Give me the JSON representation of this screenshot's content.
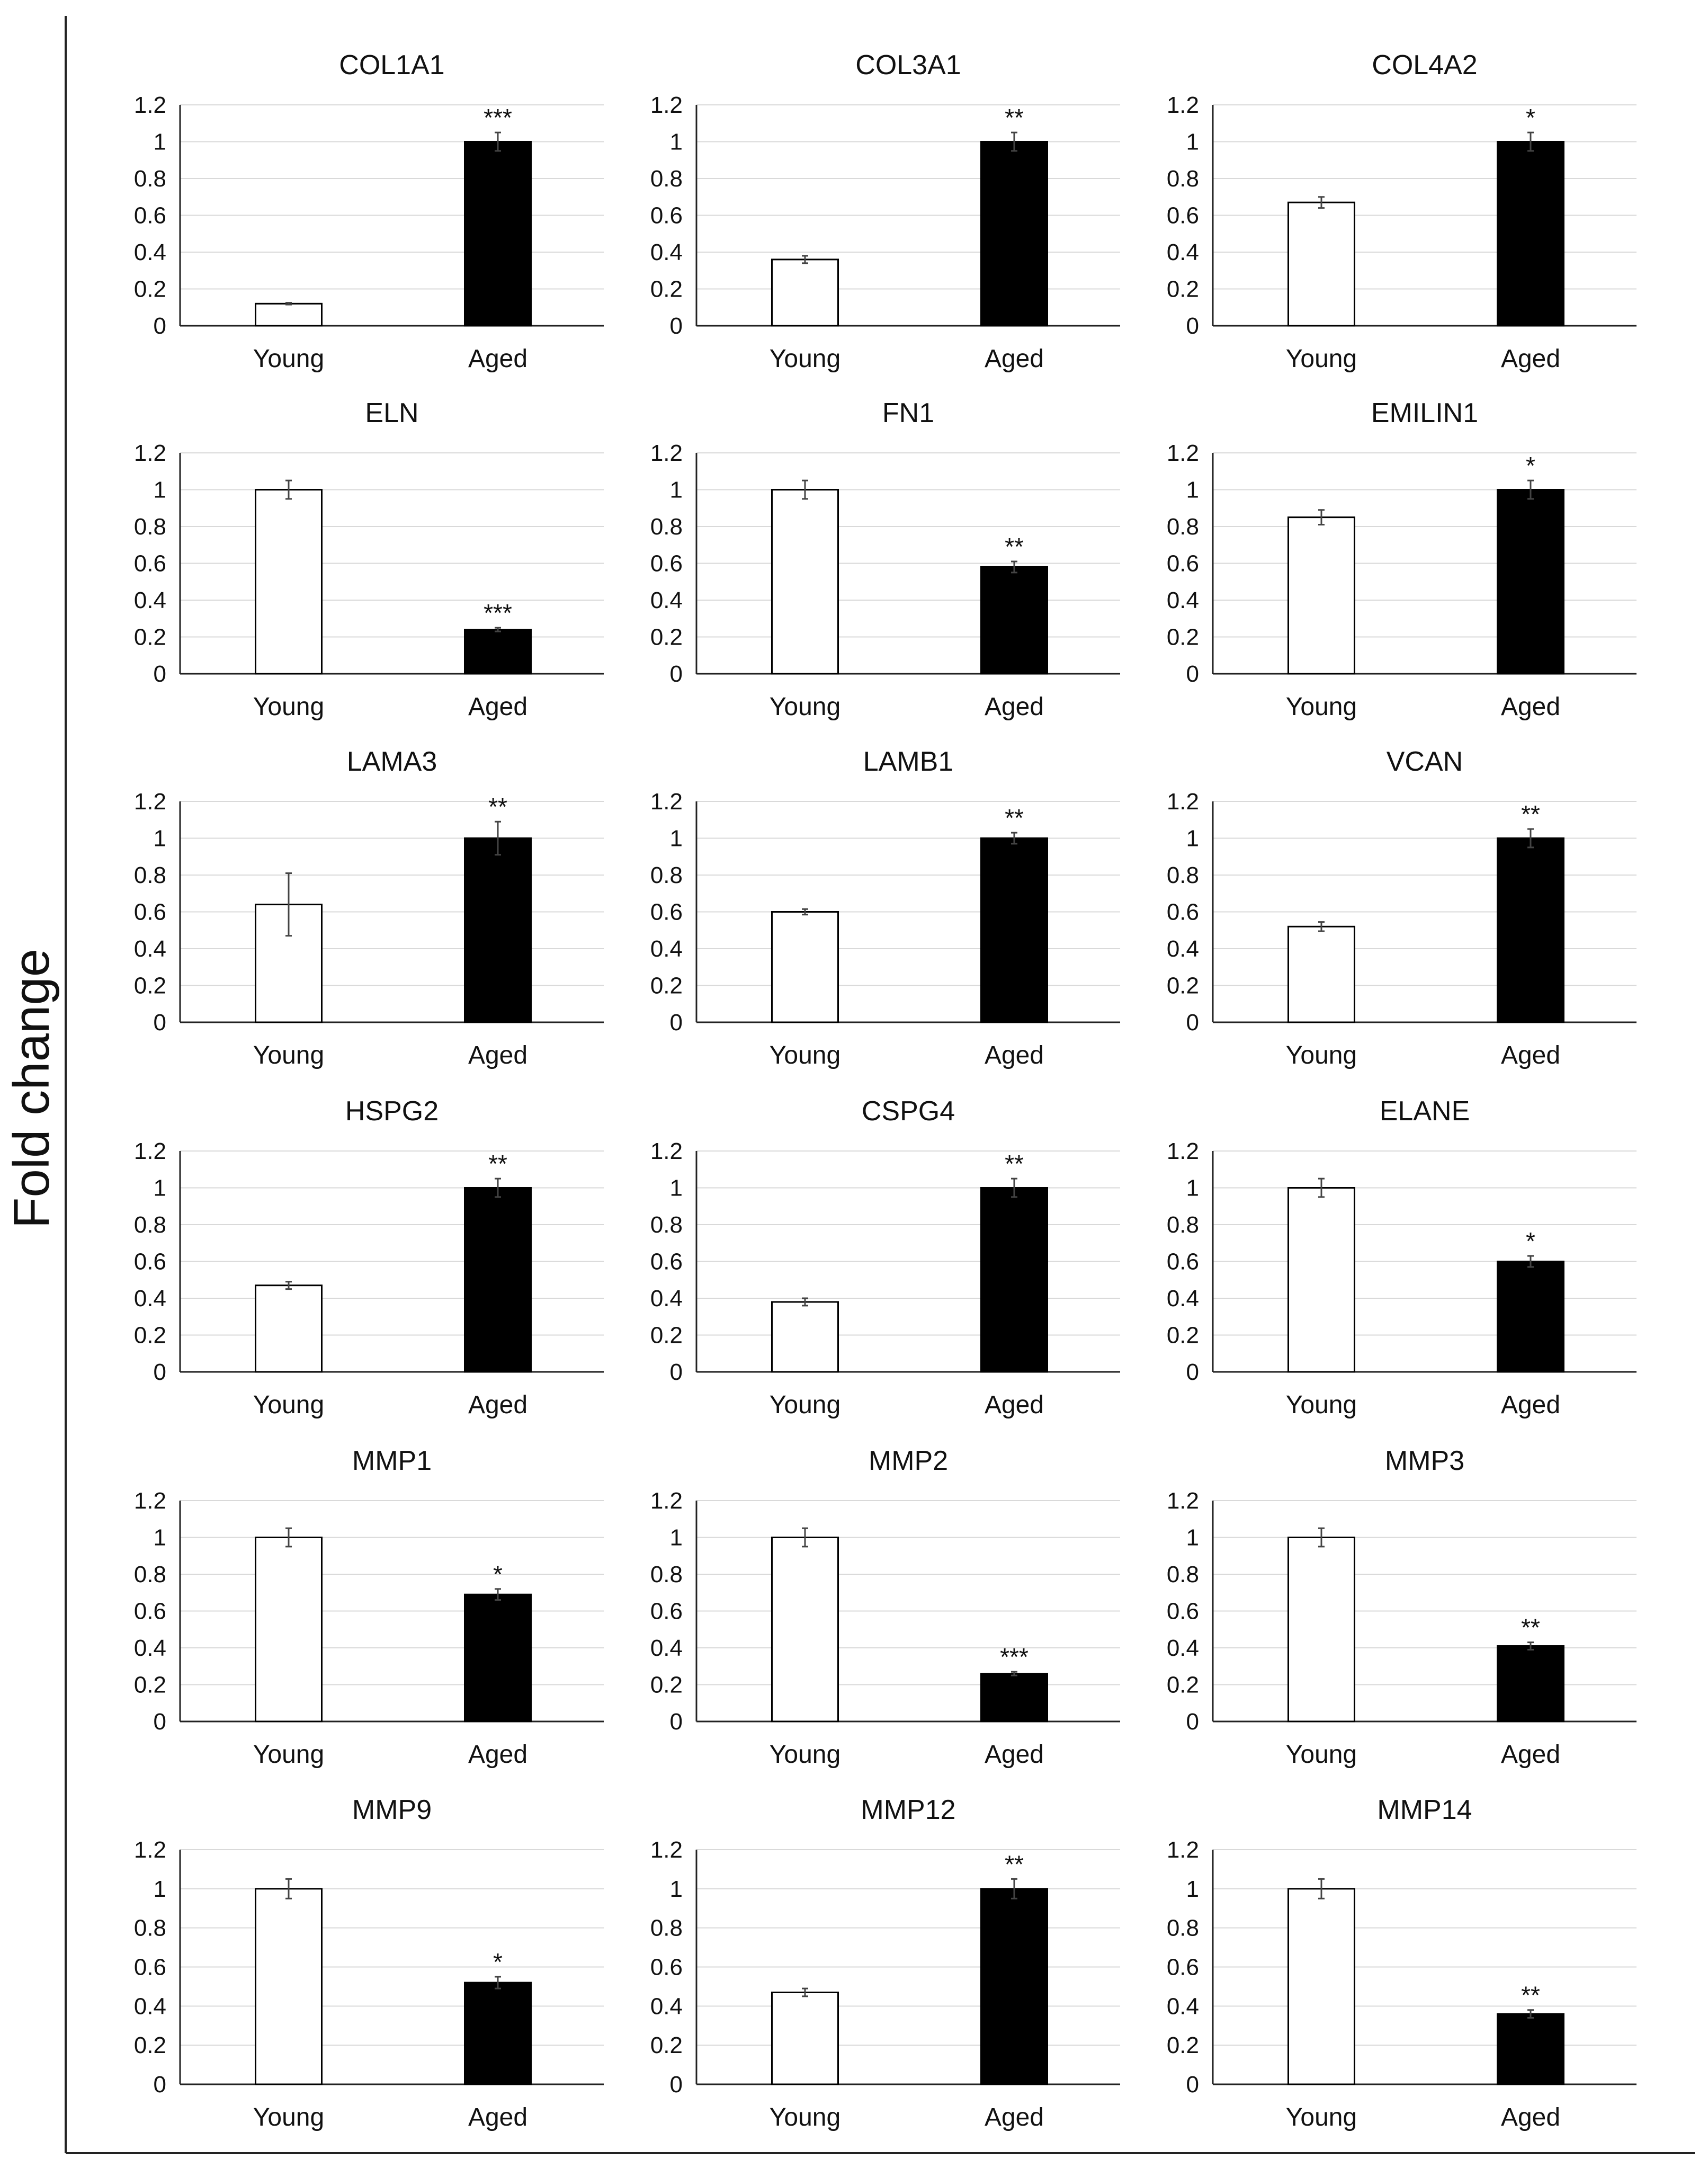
{
  "figure": {
    "y_axis_label": "Fold change"
  },
  "colors": {
    "young_bar": "#ffffff",
    "aged_bar": "#000000",
    "axis": "#222222",
    "grid": "#d9d9d9"
  },
  "chart_data": [
    {
      "type": "bar",
      "title": "COL1A1",
      "categories": [
        "Young",
        "Aged"
      ],
      "values": [
        0.12,
        1.0
      ],
      "errors": [
        0.005,
        0.05
      ],
      "significance": [
        "",
        "***"
      ],
      "yticks": [
        "0",
        "0.2",
        "0.4",
        "0.6",
        "0.8",
        "1",
        "1.2"
      ],
      "ylim": [
        0,
        1.2
      ]
    },
    {
      "type": "bar",
      "title": "COL3A1",
      "categories": [
        "Young",
        "Aged"
      ],
      "values": [
        0.36,
        1.0
      ],
      "errors": [
        0.02,
        0.05
      ],
      "significance": [
        "",
        "**"
      ],
      "yticks": [
        "0",
        "0.2",
        "0.4",
        "0.6",
        "0.8",
        "1",
        "1.2"
      ],
      "ylim": [
        0,
        1.2
      ]
    },
    {
      "type": "bar",
      "title": "COL4A2",
      "categories": [
        "Young",
        "Aged"
      ],
      "values": [
        0.67,
        1.0
      ],
      "errors": [
        0.03,
        0.05
      ],
      "significance": [
        "",
        "*"
      ],
      "yticks": [
        "0",
        "0.2",
        "0.4",
        "0.6",
        "0.8",
        "1",
        "1.2"
      ],
      "ylim": [
        0,
        1.2
      ]
    },
    {
      "type": "bar",
      "title": "ELN",
      "categories": [
        "Young",
        "Aged"
      ],
      "values": [
        1.0,
        0.24
      ],
      "errors": [
        0.05,
        0.01
      ],
      "significance": [
        "",
        "***"
      ],
      "yticks": [
        "0",
        "0.2",
        "0.4",
        "0.6",
        "0.8",
        "1",
        "1.2"
      ],
      "ylim": [
        0,
        1.2
      ]
    },
    {
      "type": "bar",
      "title": "FN1",
      "categories": [
        "Young",
        "Aged"
      ],
      "values": [
        1.0,
        0.58
      ],
      "errors": [
        0.05,
        0.03
      ],
      "significance": [
        "",
        "**"
      ],
      "yticks": [
        "0",
        "0.2",
        "0.4",
        "0.6",
        "0.8",
        "1",
        "1.2"
      ],
      "ylim": [
        0,
        1.2
      ]
    },
    {
      "type": "bar",
      "title": "EMILIN1",
      "categories": [
        "Young",
        "Aged"
      ],
      "values": [
        0.85,
        1.0
      ],
      "errors": [
        0.04,
        0.05
      ],
      "significance": [
        "",
        "*"
      ],
      "yticks": [
        "0",
        "0.2",
        "0.4",
        "0.6",
        "0.8",
        "1",
        "1.2"
      ],
      "ylim": [
        0,
        1.2
      ]
    },
    {
      "type": "bar",
      "title": "LAMA3",
      "categories": [
        "Young",
        "Aged"
      ],
      "values": [
        0.64,
        1.0
      ],
      "errors": [
        0.17,
        0.09
      ],
      "significance": [
        "",
        "**"
      ],
      "yticks": [
        "0",
        "0.2",
        "0.4",
        "0.6",
        "0.8",
        "1",
        "1.2"
      ],
      "ylim": [
        0,
        1.2
      ]
    },
    {
      "type": "bar",
      "title": "LAMB1",
      "categories": [
        "Young",
        "Aged"
      ],
      "values": [
        0.6,
        1.0
      ],
      "errors": [
        0.015,
        0.03
      ],
      "significance": [
        "",
        "**"
      ],
      "yticks": [
        "0",
        "0.2",
        "0.4",
        "0.6",
        "0.8",
        "1",
        "1.2"
      ],
      "ylim": [
        0,
        1.2
      ]
    },
    {
      "type": "bar",
      "title": "VCAN",
      "categories": [
        "Young",
        "Aged"
      ],
      "values": [
        0.52,
        1.0
      ],
      "errors": [
        0.025,
        0.05
      ],
      "significance": [
        "",
        "**"
      ],
      "yticks": [
        "0",
        "0.2",
        "0.4",
        "0.6",
        "0.8",
        "1",
        "1.2"
      ],
      "ylim": [
        0,
        1.2
      ]
    },
    {
      "type": "bar",
      "title": "HSPG2",
      "categories": [
        "Young",
        "Aged"
      ],
      "values": [
        0.47,
        1.0
      ],
      "errors": [
        0.02,
        0.05
      ],
      "significance": [
        "",
        "**"
      ],
      "yticks": [
        "0",
        "0.2",
        "0.4",
        "0.6",
        "0.8",
        "1",
        "1.2"
      ],
      "ylim": [
        0,
        1.2
      ]
    },
    {
      "type": "bar",
      "title": "CSPG4",
      "categories": [
        "Young",
        "Aged"
      ],
      "values": [
        0.38,
        1.0
      ],
      "errors": [
        0.02,
        0.05
      ],
      "significance": [
        "",
        "**"
      ],
      "yticks": [
        "0",
        "0.2",
        "0.4",
        "0.6",
        "0.8",
        "1",
        "1.2"
      ],
      "ylim": [
        0,
        1.2
      ]
    },
    {
      "type": "bar",
      "title": "ELANE",
      "categories": [
        "Young",
        "Aged"
      ],
      "values": [
        1.0,
        0.6
      ],
      "errors": [
        0.05,
        0.03
      ],
      "significance": [
        "",
        "*"
      ],
      "yticks": [
        "0",
        "0.2",
        "0.4",
        "0.6",
        "0.8",
        "1",
        "1.2"
      ],
      "ylim": [
        0,
        1.2
      ]
    },
    {
      "type": "bar",
      "title": "MMP1",
      "categories": [
        "Young",
        "Aged"
      ],
      "values": [
        1.0,
        0.69
      ],
      "errors": [
        0.05,
        0.03
      ],
      "significance": [
        "",
        "*"
      ],
      "yticks": [
        "0",
        "0.2",
        "0.4",
        "0.6",
        "0.8",
        "1",
        "1.2"
      ],
      "ylim": [
        0,
        1.2
      ]
    },
    {
      "type": "bar",
      "title": "MMP2",
      "categories": [
        "Young",
        "Aged"
      ],
      "values": [
        1.0,
        0.26
      ],
      "errors": [
        0.05,
        0.01
      ],
      "significance": [
        "",
        "***"
      ],
      "yticks": [
        "0",
        "0.2",
        "0.4",
        "0.6",
        "0.8",
        "1",
        "1.2"
      ],
      "ylim": [
        0,
        1.2
      ]
    },
    {
      "type": "bar",
      "title": "MMP3",
      "categories": [
        "Young",
        "Aged"
      ],
      "values": [
        1.0,
        0.41
      ],
      "errors": [
        0.05,
        0.02
      ],
      "significance": [
        "",
        "**"
      ],
      "yticks": [
        "0",
        "0.2",
        "0.4",
        "0.6",
        "0.8",
        "1",
        "1.2"
      ],
      "ylim": [
        0,
        1.2
      ]
    },
    {
      "type": "bar",
      "title": "MMP9",
      "categories": [
        "Young",
        "Aged"
      ],
      "values": [
        1.0,
        0.52
      ],
      "errors": [
        0.05,
        0.03
      ],
      "significance": [
        "",
        "*"
      ],
      "yticks": [
        "0",
        "0.2",
        "0.4",
        "0.6",
        "0.8",
        "1",
        "1.2"
      ],
      "ylim": [
        0,
        1.2
      ]
    },
    {
      "type": "bar",
      "title": "MMP12",
      "categories": [
        "Young",
        "Aged"
      ],
      "values": [
        0.47,
        1.0
      ],
      "errors": [
        0.02,
        0.05
      ],
      "significance": [
        "",
        "**"
      ],
      "yticks": [
        "0",
        "0.2",
        "0.4",
        "0.6",
        "0.8",
        "1",
        "1.2"
      ],
      "ylim": [
        0,
        1.2
      ]
    },
    {
      "type": "bar",
      "title": "MMP14",
      "categories": [
        "Young",
        "Aged"
      ],
      "values": [
        1.0,
        0.36
      ],
      "errors": [
        0.05,
        0.02
      ],
      "significance": [
        "",
        "**"
      ],
      "yticks": [
        "0",
        "0.2",
        "0.4",
        "0.6",
        "0.8",
        "1",
        "1.2"
      ],
      "ylim": [
        0,
        1.2
      ]
    }
  ]
}
